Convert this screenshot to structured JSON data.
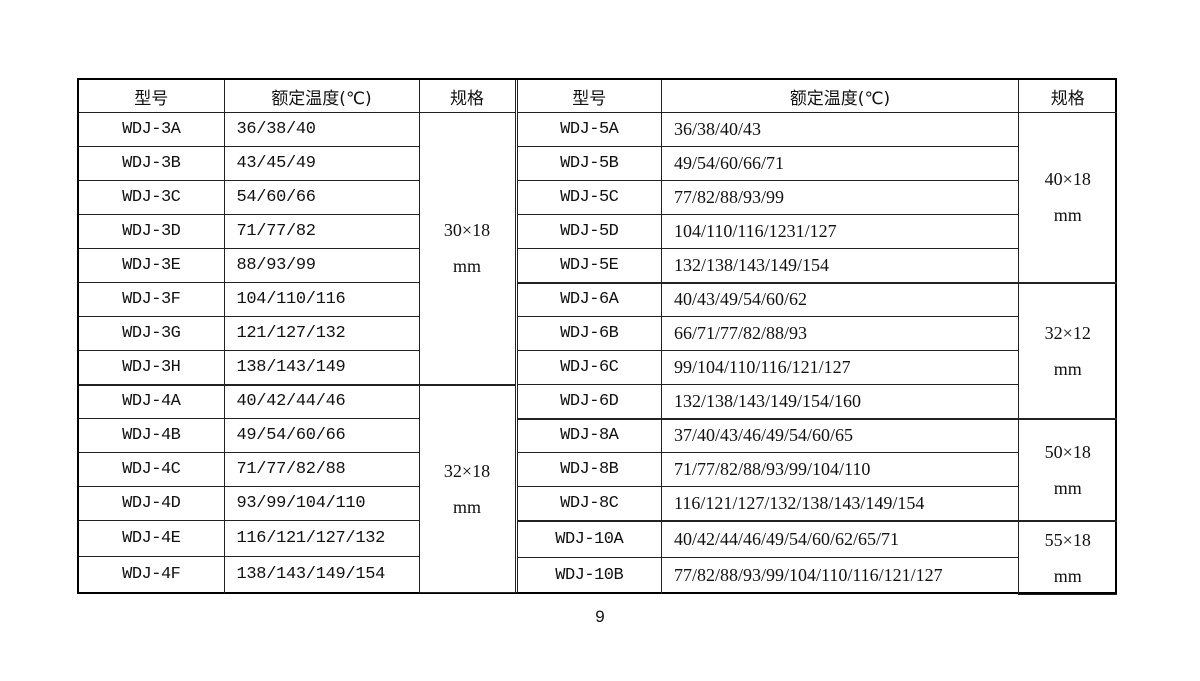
{
  "headers": {
    "model": "型号",
    "temp": "额定温度(℃)",
    "spec": "规格"
  },
  "left_groups": [
    {
      "spec": [
        "30×18",
        "mm"
      ],
      "rows": [
        [
          "WDJ-3A",
          "36/38/40"
        ],
        [
          "WDJ-3B",
          "43/45/49"
        ],
        [
          "WDJ-3C",
          "54/60/66"
        ],
        [
          "WDJ-3D",
          "71/77/82"
        ],
        [
          "WDJ-3E",
          "88/93/99"
        ],
        [
          "WDJ-3F",
          "104/110/116"
        ],
        [
          "WDJ-3G",
          "121/127/132"
        ],
        [
          "WDJ-3H",
          "138/143/149"
        ]
      ]
    },
    {
      "spec": [
        "32×18",
        "mm"
      ],
      "rows": [
        [
          "WDJ-4A",
          "40/42/44/46"
        ],
        [
          "WDJ-4B",
          "49/54/60/66"
        ],
        [
          "WDJ-4C",
          "71/77/82/88"
        ],
        [
          "WDJ-4D",
          "93/99/104/110"
        ],
        [
          "WDJ-4E",
          "116/121/127/132"
        ],
        [
          "WDJ-4F",
          "138/143/149/154"
        ]
      ]
    }
  ],
  "right_groups": [
    {
      "spec": [
        "40×18",
        "mm"
      ],
      "rows": [
        [
          "WDJ-5A",
          "36/38/40/43"
        ],
        [
          "WDJ-5B",
          "49/54/60/66/71"
        ],
        [
          "WDJ-5C",
          "77/82/88/93/99"
        ],
        [
          "WDJ-5D",
          "104/110/116/1231/127"
        ],
        [
          "WDJ-5E",
          "132/138/143/149/154"
        ]
      ]
    },
    {
      "spec": [
        "32×12",
        "mm"
      ],
      "rows": [
        [
          "WDJ-6A",
          "40/43/49/54/60/62"
        ],
        [
          "WDJ-6B",
          "66/71/77/82/88/93"
        ],
        [
          "WDJ-6C",
          "99/104/110/116/121/127"
        ],
        [
          "WDJ-6D",
          "132/138/143/149/154/160"
        ]
      ]
    },
    {
      "spec": [
        "50×18",
        "mm"
      ],
      "rows": [
        [
          "WDJ-8A",
          "37/40/43/46/49/54/60/65"
        ],
        [
          "WDJ-8B",
          "71/77/82/88/93/99/104/110"
        ],
        [
          "WDJ-8C",
          "116/121/127/132/138/143/149/154"
        ]
      ]
    },
    {
      "spec": [
        "55×18",
        "mm"
      ],
      "rows": [
        [
          "WDJ-10A",
          "40/42/44/46/49/54/60/62/65/71"
        ],
        [
          "WDJ-10B",
          "77/82/88/93/99/104/110/116/121/127"
        ]
      ]
    }
  ],
  "page_number": "9"
}
